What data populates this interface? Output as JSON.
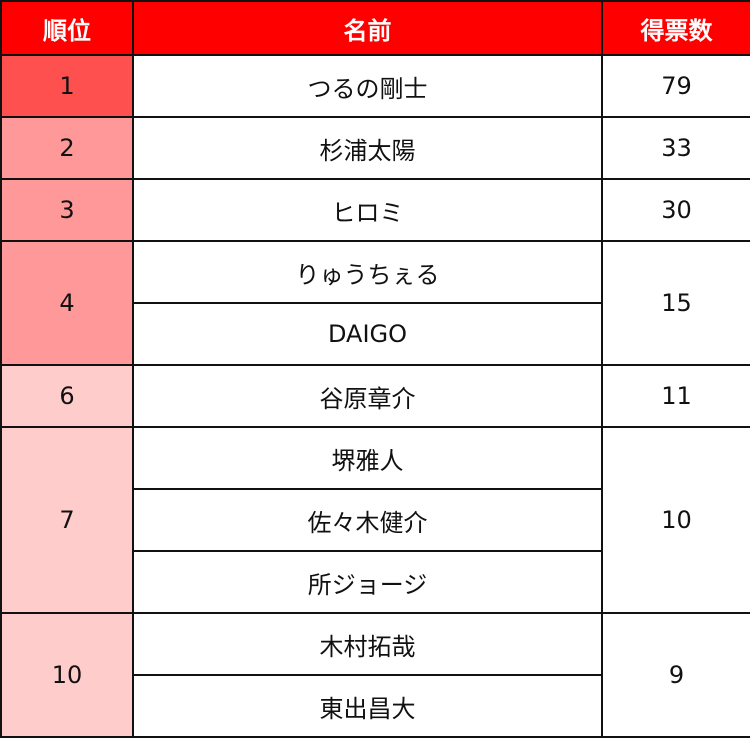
{
  "headers": {
    "rank": "順位",
    "name": "名前",
    "votes": "得票数"
  },
  "colors": {
    "header": "#ff0000",
    "rank1": "#ff5050",
    "rank2to4": "#ff9999",
    "rank6to10": "#ffcccc"
  },
  "groups": [
    {
      "rank": "1",
      "votes": "79",
      "color": "#ff5050",
      "names": [
        "つるの剛士"
      ]
    },
    {
      "rank": "2",
      "votes": "33",
      "color": "#ff9999",
      "names": [
        "杉浦太陽"
      ]
    },
    {
      "rank": "3",
      "votes": "30",
      "color": "#ff9999",
      "names": [
        "ヒロミ"
      ]
    },
    {
      "rank": "4",
      "votes": "15",
      "color": "#ff9999",
      "names": [
        "りゅうちぇる",
        "DAIGO"
      ]
    },
    {
      "rank": "6",
      "votes": "11",
      "color": "#ffcccc",
      "names": [
        "谷原章介"
      ]
    },
    {
      "rank": "7",
      "votes": "10",
      "color": "#ffcccc",
      "names": [
        "堺雅人",
        "佐々木健介",
        "所ジョージ"
      ]
    },
    {
      "rank": "10",
      "votes": "9",
      "color": "#ffcccc",
      "names": [
        "木村拓哉",
        "東出昌大"
      ]
    }
  ]
}
